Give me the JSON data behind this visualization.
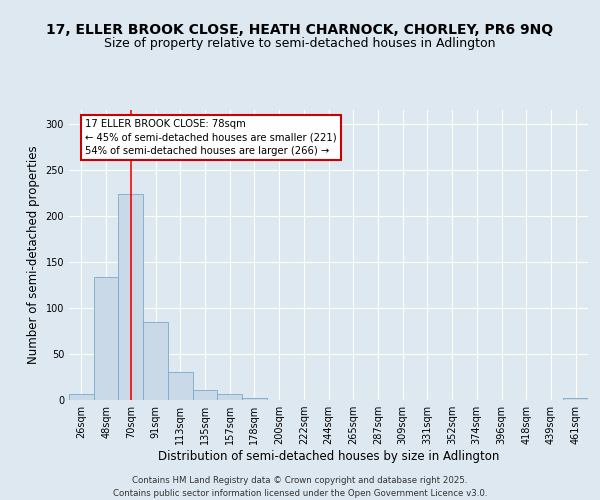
{
  "title_line1": "17, ELLER BROOK CLOSE, HEATH CHARNOCK, CHORLEY, PR6 9NQ",
  "title_line2": "Size of property relative to semi-detached houses in Adlington",
  "xlabel": "Distribution of semi-detached houses by size in Adlington",
  "ylabel": "Number of semi-detached properties",
  "categories": [
    "26sqm",
    "48sqm",
    "70sqm",
    "91sqm",
    "113sqm",
    "135sqm",
    "157sqm",
    "178sqm",
    "200sqm",
    "222sqm",
    "244sqm",
    "265sqm",
    "287sqm",
    "309sqm",
    "331sqm",
    "352sqm",
    "374sqm",
    "396sqm",
    "418sqm",
    "439sqm",
    "461sqm"
  ],
  "values": [
    6,
    134,
    224,
    85,
    30,
    11,
    6,
    2,
    0,
    0,
    0,
    0,
    0,
    0,
    0,
    0,
    0,
    0,
    0,
    0,
    2
  ],
  "bar_color": "#c9d9e8",
  "bar_edge_color": "#7aaac8",
  "red_line_x": 2.0,
  "annotation_text": "17 ELLER BROOK CLOSE: 78sqm\n← 45% of semi-detached houses are smaller (221)\n54% of semi-detached houses are larger (266) →",
  "footer": "Contains HM Land Registry data © Crown copyright and database right 2025.\nContains public sector information licensed under the Open Government Licence v3.0.",
  "ylim": [
    0,
    315
  ],
  "fig_background": "#dde8f0",
  "plot_background": "#dde8f0",
  "grid_color": "#ffffff",
  "annotation_box_color": "#ffffff",
  "annotation_box_edge": "#cc0000",
  "title_fontsize": 10,
  "subtitle_fontsize": 9,
  "tick_fontsize": 7,
  "axis_label_fontsize": 8.5
}
